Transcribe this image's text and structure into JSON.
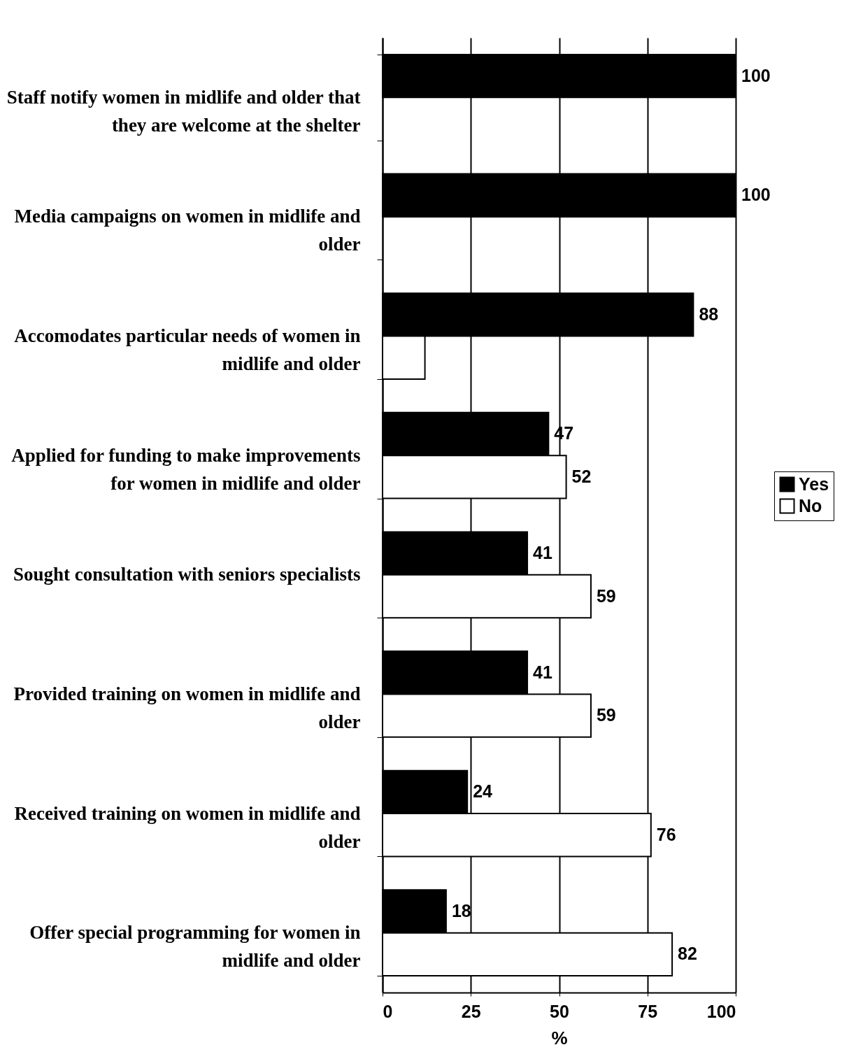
{
  "chart_data": {
    "type": "bar",
    "orientation": "horizontal",
    "xlabel": "%",
    "categories": [
      "Staff notify women in midlife and older that they are welcome at the shelter",
      "Media campaigns on women in midlife and older",
      "Accomodates particular needs of women in midlife and older",
      "Applied for funding to make improvements for women in midlife and older",
      "Sought consultation with seniors specialists",
      "Provided training on women in midlife and older",
      "Received training on women in midlife and older",
      "Offer special programming for women in midlife and older"
    ],
    "series": [
      {
        "name": "Yes",
        "color": "#000000",
        "values": [
          100,
          100,
          88,
          47,
          41,
          41,
          24,
          18
        ],
        "value_labels": [
          "100",
          "100",
          "88",
          "47",
          "41",
          "41",
          "24",
          "18"
        ]
      },
      {
        "name": "No",
        "color": "#ffffff",
        "values": [
          0,
          0,
          12,
          52,
          59,
          59,
          76,
          82
        ],
        "value_labels": [
          null,
          null,
          null,
          "52",
          "59",
          "59",
          "76",
          "82"
        ]
      }
    ],
    "xlim": [
      0,
      100
    ],
    "xticks": [
      0,
      25,
      50,
      75,
      100
    ],
    "grid": "x",
    "legend": "right"
  }
}
